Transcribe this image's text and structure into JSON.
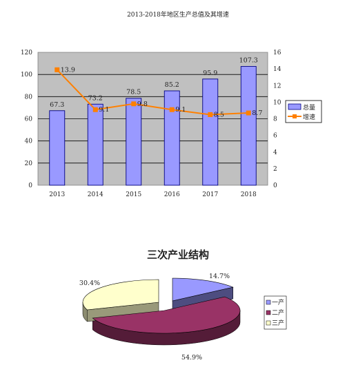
{
  "chart_data": [
    {
      "type": "bar",
      "title": "2013-2018年地区生产总值及其增速",
      "categories": [
        "2013",
        "2014",
        "2015",
        "2016",
        "2017",
        "2018"
      ],
      "series": [
        {
          "name": "总量",
          "type": "bar",
          "axis": "left",
          "values": [
            67.3,
            73.2,
            78.5,
            85.2,
            95.9,
            107.3
          ]
        },
        {
          "name": "增速",
          "type": "line",
          "axis": "right",
          "values": [
            13.9,
            9.1,
            9.8,
            9.1,
            8.5,
            8.7
          ]
        }
      ],
      "y_left_ticks": [
        "0",
        "20",
        "40",
        "60",
        "80",
        "100",
        "120"
      ],
      "y_right_ticks": [
        "0",
        "2",
        "4",
        "6",
        "8",
        "10",
        "12",
        "14",
        "16"
      ],
      "ylim_left": [
        0,
        120
      ],
      "ylim_right": [
        0,
        16
      ],
      "grid": true,
      "legend": "right",
      "colors": {
        "bar": "#9999ff",
        "bar_border": "#000080",
        "line": "#ff8000",
        "plot_bg": "#c0c0c0"
      },
      "data_labels_bar": [
        "67.3",
        "73.2",
        "78.5",
        "85.2",
        "95.9",
        "107.3"
      ],
      "data_labels_line": [
        "13.9",
        "9.1",
        "9.8",
        "9.1",
        "8.5",
        "8.7"
      ]
    },
    {
      "type": "pie",
      "title": "三次产业结构",
      "categories": [
        "一产",
        "二产",
        "三产"
      ],
      "values": [
        14.7,
        54.9,
        30.4
      ],
      "labels": [
        "14.7%",
        "54.9%",
        "30.4%"
      ],
      "legend": "right",
      "colors": [
        "#9999ff",
        "#993366",
        "#ffffcc"
      ]
    }
  ]
}
